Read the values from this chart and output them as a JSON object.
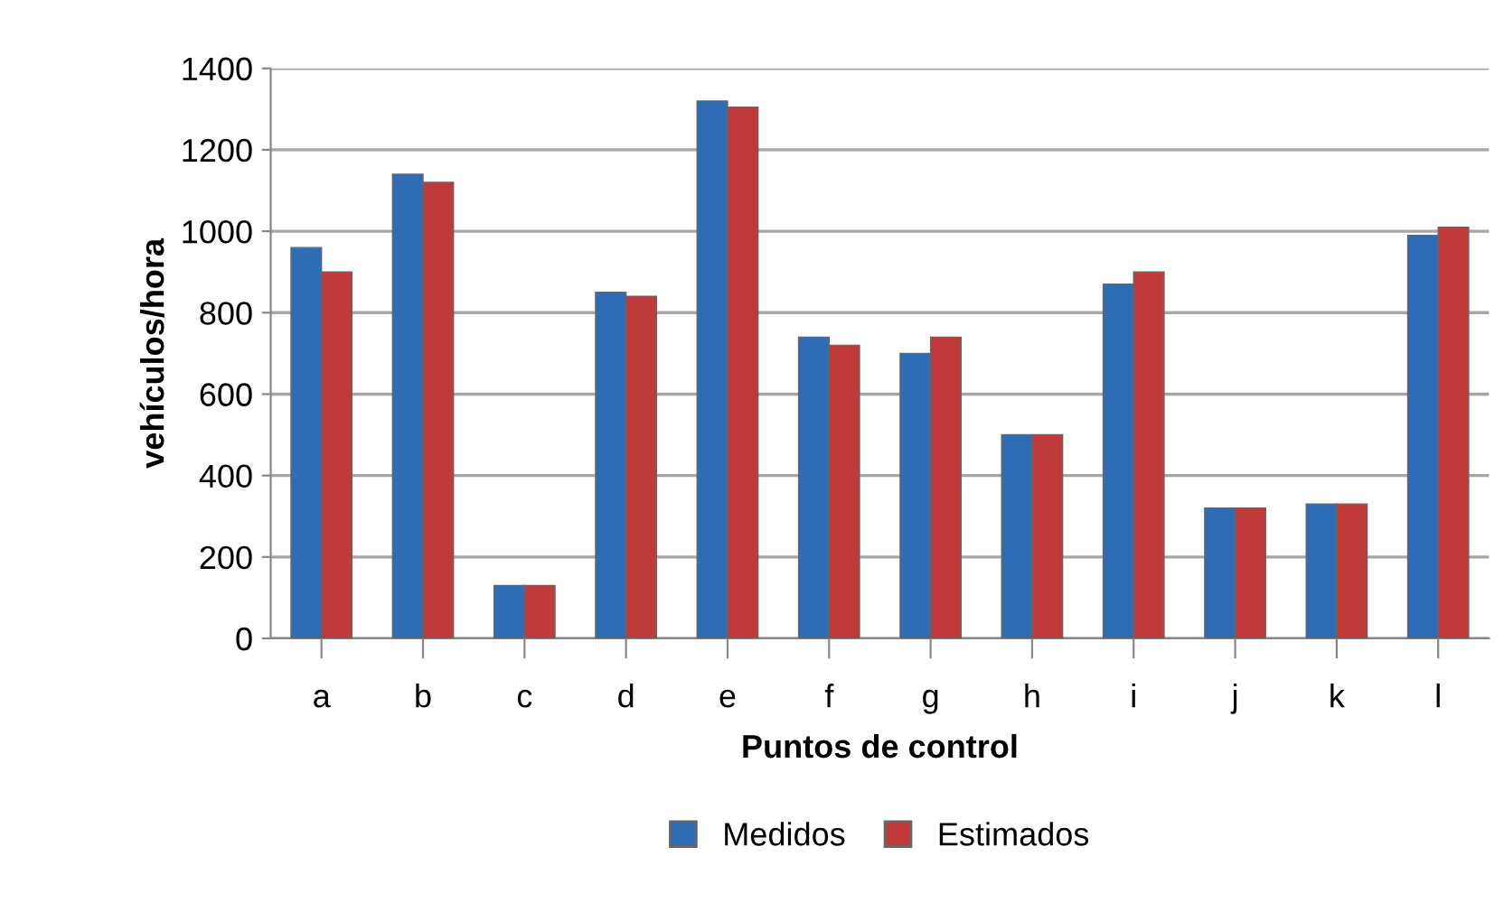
{
  "chart_data": {
    "type": "bar",
    "xlabel": "Puntos de control",
    "ylabel": "vehículos/hora",
    "categories": [
      "a",
      "b",
      "c",
      "d",
      "e",
      "f",
      "g",
      "h",
      "i",
      "j",
      "k",
      "l"
    ],
    "series": [
      {
        "name": "Medidos",
        "color": "#2e6db5",
        "values": [
          960,
          1140,
          130,
          850,
          1320,
          740,
          700,
          500,
          870,
          320,
          330,
          990
        ]
      },
      {
        "name": "Estimados",
        "color": "#c0393b",
        "values": [
          900,
          1120,
          130,
          840,
          1305,
          720,
          740,
          500,
          900,
          320,
          330,
          1010
        ]
      }
    ],
    "ylim": [
      0,
      1400
    ],
    "yticks": [
      0,
      200,
      400,
      600,
      800,
      1000,
      1200,
      1400
    ],
    "grid": "y",
    "legend": "bottom"
  }
}
